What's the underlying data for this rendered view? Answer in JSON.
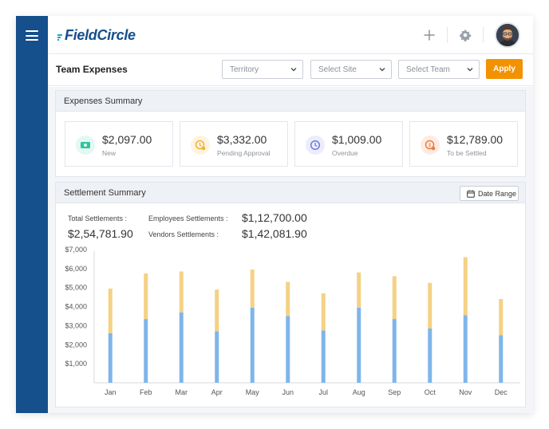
{
  "brand": {
    "name": "FieldCircle"
  },
  "header": {
    "icons": [
      "plus-icon",
      "gear-icon"
    ],
    "avatar": "avatar"
  },
  "toolbar": {
    "title": "Team Expenses",
    "filters": [
      {
        "name": "territory-select",
        "value": "Territory"
      },
      {
        "name": "site-select",
        "value": "Select Site"
      },
      {
        "name": "team-select",
        "value": "Select Team"
      }
    ],
    "apply_label": "Apply"
  },
  "expenses_summary": {
    "title": "Expenses Summary",
    "cards": [
      {
        "value": "$2,097.00",
        "label": "New",
        "icon": "money-icon",
        "color": "#2ec4a0",
        "bg": "#e3f8f1"
      },
      {
        "value": "$3,332.00",
        "label": "Pending Approval",
        "icon": "pending-icon",
        "color": "#f2b233",
        "bg": "#fdf4e0"
      },
      {
        "value": "$1,009.00",
        "label": "Overdue",
        "icon": "clock-icon",
        "color": "#6c7ae0",
        "bg": "#ecedfb"
      },
      {
        "value": "$12,789.00",
        "label": "To be Settled",
        "icon": "settle-icon",
        "color": "#f07b3f",
        "bg": "#fdece3"
      }
    ]
  },
  "settlement_summary": {
    "title": "Settlement Summary",
    "date_range_label": "Date Range",
    "total_label": "Total Settlements :",
    "total_value": "$2,54,781.90",
    "employees_label": "Employees Settlements :",
    "employees_value": "$1,12,700.00",
    "vendors_label": "Vendors Settlements :",
    "vendors_value": "$1,42,081.90"
  },
  "chart_data": {
    "type": "bar",
    "stacked": true,
    "categories": [
      "Jan",
      "Feb",
      "Mar",
      "Apr",
      "May",
      "Jun",
      "Jul",
      "Aug",
      "Sep",
      "Oct",
      "Nov",
      "Dec"
    ],
    "series": [
      {
        "color": "#7fb5ea",
        "values": [
          2600,
          3350,
          3700,
          2700,
          3950,
          3500,
          2750,
          3950,
          3350,
          2850,
          3550,
          2500
        ]
      },
      {
        "color": "#f4d184",
        "values": [
          2350,
          2400,
          2150,
          2200,
          2000,
          1800,
          1950,
          1850,
          2250,
          2400,
          3050,
          1900
        ]
      }
    ],
    "ylim": [
      0,
      7000
    ],
    "yticks": [
      "$1,000",
      "$2,000",
      "$3,000",
      "$4,000",
      "$5,000",
      "$6,000",
      "$7,000"
    ],
    "grid": false
  }
}
